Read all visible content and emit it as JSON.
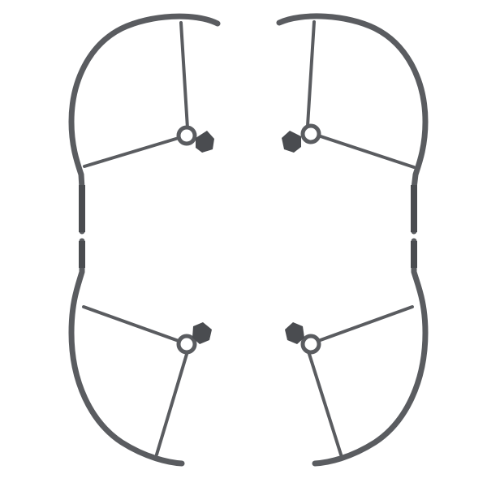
{
  "image": {
    "subject": "propeller-guards",
    "count": 4,
    "colors": {
      "background": "#ffffff",
      "guard": "#5a5c60",
      "guard_dark": "#4a4c50",
      "hub_inner": "#ffffff"
    }
  }
}
